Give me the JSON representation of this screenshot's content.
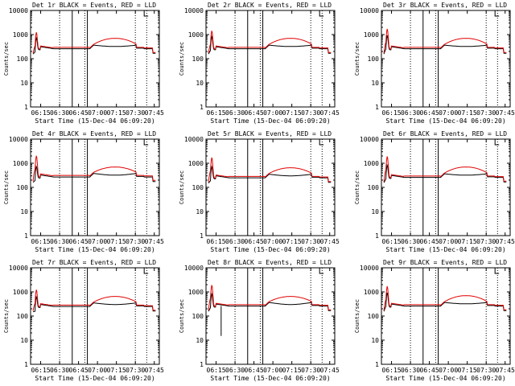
{
  "figure": {
    "panel_title_template": "Det {det} BLACK = Events, RED = LLD",
    "xlabel": "Start Time (15-Dec-04 06:09:20)",
    "ylabel": "Counts/sec"
  },
  "chart_data": {
    "type": "line",
    "yscale": "log",
    "ylim": [
      1,
      10000
    ],
    "ytick_values": [
      1,
      10,
      100,
      1000,
      10000
    ],
    "ytick_labels": [
      "1",
      "10",
      "100",
      "1000",
      "10000"
    ],
    "xlim_minutes": [
      -2,
      100
    ],
    "xtick_minutes": [
      6,
      21,
      36,
      51,
      66,
      81,
      96
    ],
    "xtick_labels": [
      "06:15",
      "06:30",
      "06:45",
      "07:00",
      "07:15",
      "07:30",
      "07:45"
    ],
    "dotted_markers_minutes": [
      21,
      41,
      81,
      90
    ],
    "solid_markers_minutes": [
      31,
      43
    ],
    "series_colors": {
      "events": "#000000",
      "lld": "#e00000"
    },
    "panels": [
      {
        "det": "1r",
        "events_peak": 500,
        "lld_peak": 1000,
        "events_base": 260,
        "lld_base": 280,
        "events_arc": 320,
        "lld_arc": 700,
        "dip": null
      },
      {
        "det": "2r",
        "events_peak": 600,
        "lld_peak": 1200,
        "events_base": 260,
        "lld_base": 280,
        "events_arc": 320,
        "lld_arc": 700,
        "dip": null
      },
      {
        "det": "3r",
        "events_peak": 700,
        "lld_peak": 1500,
        "events_base": 260,
        "lld_base": 280,
        "events_arc": 320,
        "lld_arc": 700,
        "dip": null
      },
      {
        "det": "4r",
        "events_peak": 500,
        "lld_peak": 1800,
        "events_base": 270,
        "lld_base": 300,
        "events_arc": 320,
        "lld_arc": 700,
        "dip": null
      },
      {
        "det": "5r",
        "events_peak": 500,
        "lld_peak": 1500,
        "events_base": 250,
        "lld_base": 270,
        "events_arc": 300,
        "lld_arc": 650,
        "dip": null
      },
      {
        "det": "6r",
        "events_peak": 600,
        "lld_peak": 1700,
        "events_base": 260,
        "lld_base": 280,
        "events_arc": 320,
        "lld_arc": 700,
        "dip": null
      },
      {
        "det": "7r",
        "events_peak": 400,
        "lld_peak": 1000,
        "events_base": 250,
        "lld_base": 270,
        "events_arc": 300,
        "lld_arc": 650,
        "dip": null
      },
      {
        "det": "8r",
        "events_peak": 600,
        "lld_peak": 1700,
        "events_base": 260,
        "lld_base": 280,
        "events_arc": 300,
        "lld_arc": 650,
        "dip": 15
      },
      {
        "det": "9r",
        "events_peak": 700,
        "lld_peak": 1500,
        "events_base": 260,
        "lld_base": 280,
        "events_arc": 320,
        "lld_arc": 700,
        "dip": null
      }
    ]
  }
}
